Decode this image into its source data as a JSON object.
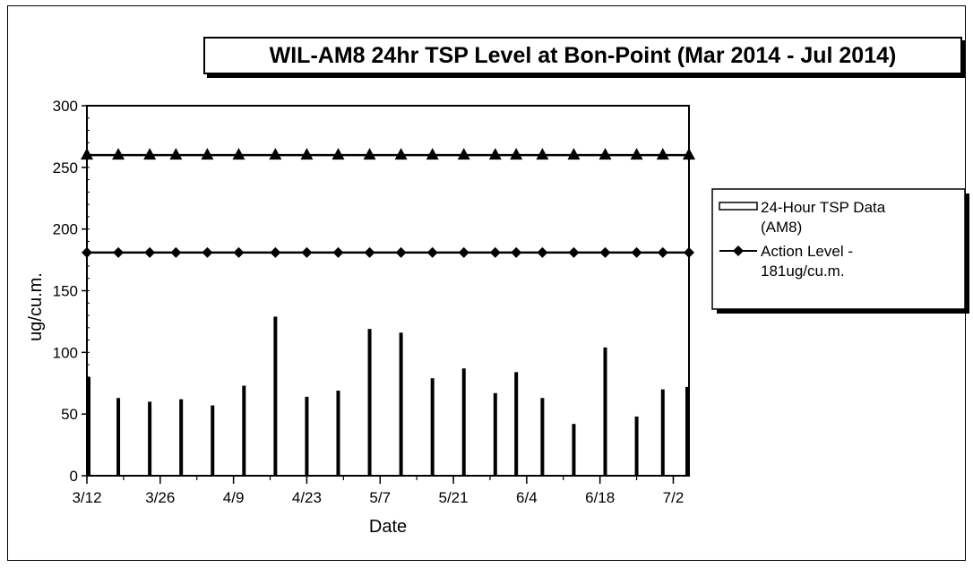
{
  "chart_data": {
    "type": "bar",
    "title": "WIL-AM8 24hr TSP Level at Bon-Point (Mar 2014 - Jul 2014)",
    "xlabel": "Date",
    "ylabel": "ug/cu.m.",
    "ylim": [
      0,
      300
    ],
    "yticks": [
      0,
      50,
      100,
      150,
      200,
      250,
      300
    ],
    "xlim": [
      "2014-03-12",
      "2014-07-05"
    ],
    "xticks": [
      "3/12",
      "3/26",
      "4/9",
      "4/23",
      "5/7",
      "5/21",
      "6/4",
      "6/18",
      "7/2"
    ],
    "xtick_dates": [
      "2014-03-12",
      "2014-03-26",
      "2014-04-09",
      "2014-04-23",
      "2014-05-07",
      "2014-05-21",
      "2014-06-04",
      "2014-06-18",
      "2014-07-02"
    ],
    "series": [
      {
        "name": "24-Hour TSP Data (AM8)",
        "kind": "bar",
        "color": "#000000",
        "x": [
          "2014-03-12",
          "2014-03-18",
          "2014-03-24",
          "2014-03-30",
          "2014-04-05",
          "2014-04-11",
          "2014-04-17",
          "2014-04-23",
          "2014-04-29",
          "2014-05-05",
          "2014-05-11",
          "2014-05-17",
          "2014-05-23",
          "2014-05-29",
          "2014-06-02",
          "2014-06-07",
          "2014-06-13",
          "2014-06-19",
          "2014-06-25",
          "2014-06-30",
          "2014-07-05"
        ],
        "values": [
          80,
          63,
          60,
          62,
          57,
          73,
          129,
          64,
          69,
          119,
          116,
          79,
          87,
          67,
          84,
          63,
          42,
          104,
          48,
          70,
          72
        ]
      },
      {
        "name": "Action Level - 181ug/cu.m.",
        "kind": "line",
        "marker": "diamond",
        "color": "#000000",
        "x": [
          "2014-03-12",
          "2014-03-18",
          "2014-03-24",
          "2014-03-29",
          "2014-04-04",
          "2014-04-10",
          "2014-04-17",
          "2014-04-23",
          "2014-04-29",
          "2014-05-05",
          "2014-05-11",
          "2014-05-17",
          "2014-05-23",
          "2014-05-29",
          "2014-06-02",
          "2014-06-07",
          "2014-06-13",
          "2014-06-19",
          "2014-06-25",
          "2014-06-30",
          "2014-07-05"
        ],
        "values": [
          181,
          181,
          181,
          181,
          181,
          181,
          181,
          181,
          181,
          181,
          181,
          181,
          181,
          181,
          181,
          181,
          181,
          181,
          181,
          181,
          181
        ]
      },
      {
        "kind": "line",
        "marker": "triangle",
        "color": "#000000",
        "x": [
          "2014-03-12",
          "2014-03-18",
          "2014-03-24",
          "2014-03-29",
          "2014-04-04",
          "2014-04-10",
          "2014-04-17",
          "2014-04-23",
          "2014-04-29",
          "2014-05-05",
          "2014-05-11",
          "2014-05-17",
          "2014-05-23",
          "2014-05-29",
          "2014-06-02",
          "2014-06-07",
          "2014-06-13",
          "2014-06-19",
          "2014-06-25",
          "2014-06-30",
          "2014-07-05"
        ],
        "values": [
          260,
          260,
          260,
          260,
          260,
          260,
          260,
          260,
          260,
          260,
          260,
          260,
          260,
          260,
          260,
          260,
          260,
          260,
          260,
          260,
          260
        ]
      }
    ],
    "legend": {
      "placement": "right",
      "entries": [
        "24-Hour TSP Data (AM8)",
        "Action Level - 181ug/cu.m."
      ]
    },
    "grid": false
  }
}
